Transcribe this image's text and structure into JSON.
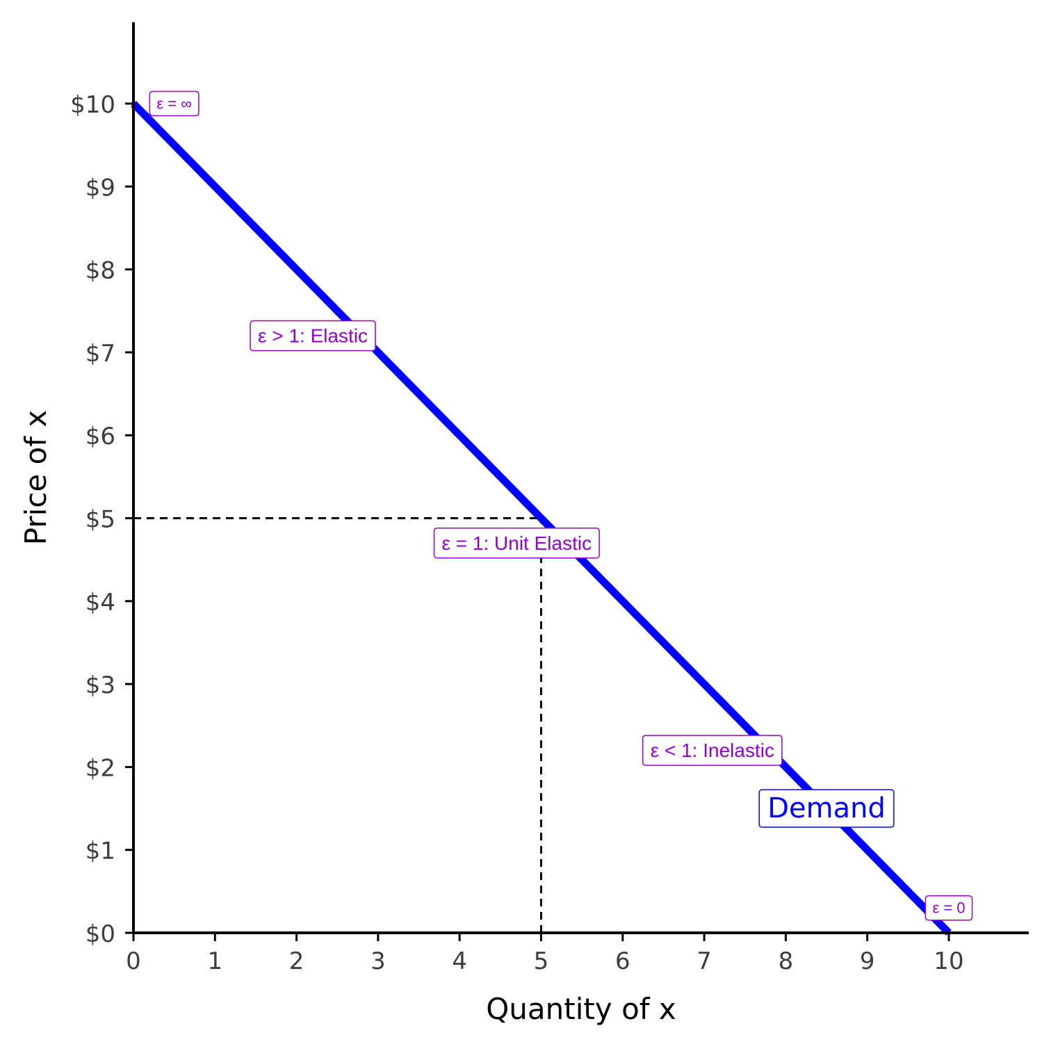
{
  "chart_data": {
    "type": "line",
    "xlabel": "Quantity of x",
    "ylabel": "Price of x",
    "xlim": [
      0,
      11
    ],
    "ylim": [
      0,
      11
    ],
    "x_ticks": [
      0,
      1,
      2,
      3,
      4,
      5,
      6,
      7,
      8,
      9,
      10
    ],
    "x_tick_labels": [
      "0",
      "1",
      "2",
      "3",
      "4",
      "5",
      "6",
      "7",
      "8",
      "9",
      "10"
    ],
    "y_ticks": [
      0,
      1,
      2,
      3,
      4,
      5,
      6,
      7,
      8,
      9,
      10
    ],
    "y_tick_labels": [
      "$0",
      "$1",
      "$2",
      "$3",
      "$4",
      "$5",
      "$6",
      "$7",
      "$8",
      "$9",
      "$10"
    ],
    "grid": false,
    "series": [
      {
        "name": "Demand",
        "color": "#0000ff",
        "x": [
          0,
          10
        ],
        "y": [
          10,
          0
        ]
      }
    ],
    "reference_lines": [
      {
        "style": "dashed",
        "color": "#000000",
        "from": [
          0,
          5
        ],
        "to": [
          5,
          5
        ]
      },
      {
        "style": "dashed",
        "color": "#000000",
        "from": [
          5,
          0
        ],
        "to": [
          5,
          5
        ]
      }
    ],
    "annotations": [
      {
        "text": "ε = ∞",
        "x": 0.5,
        "y": 10,
        "size": "small",
        "color": "#9400d3"
      },
      {
        "text": "ε > 1: Elastic",
        "x": 2.2,
        "y": 7.2,
        "size": "normal",
        "color": "#9400d3"
      },
      {
        "text": "ε = 1: Unit Elastic",
        "x": 4.7,
        "y": 4.7,
        "size": "normal",
        "color": "#9400d3"
      },
      {
        "text": "ε < 1: Inelastic",
        "x": 7.1,
        "y": 2.2,
        "size": "normal",
        "color": "#9400d3"
      },
      {
        "text": "ε = 0",
        "x": 10,
        "y": 0.3,
        "size": "small",
        "color": "#9400d3"
      }
    ],
    "series_label": {
      "text": "Demand",
      "x": 8.5,
      "y": 1.5,
      "color": "#0000ff"
    }
  }
}
